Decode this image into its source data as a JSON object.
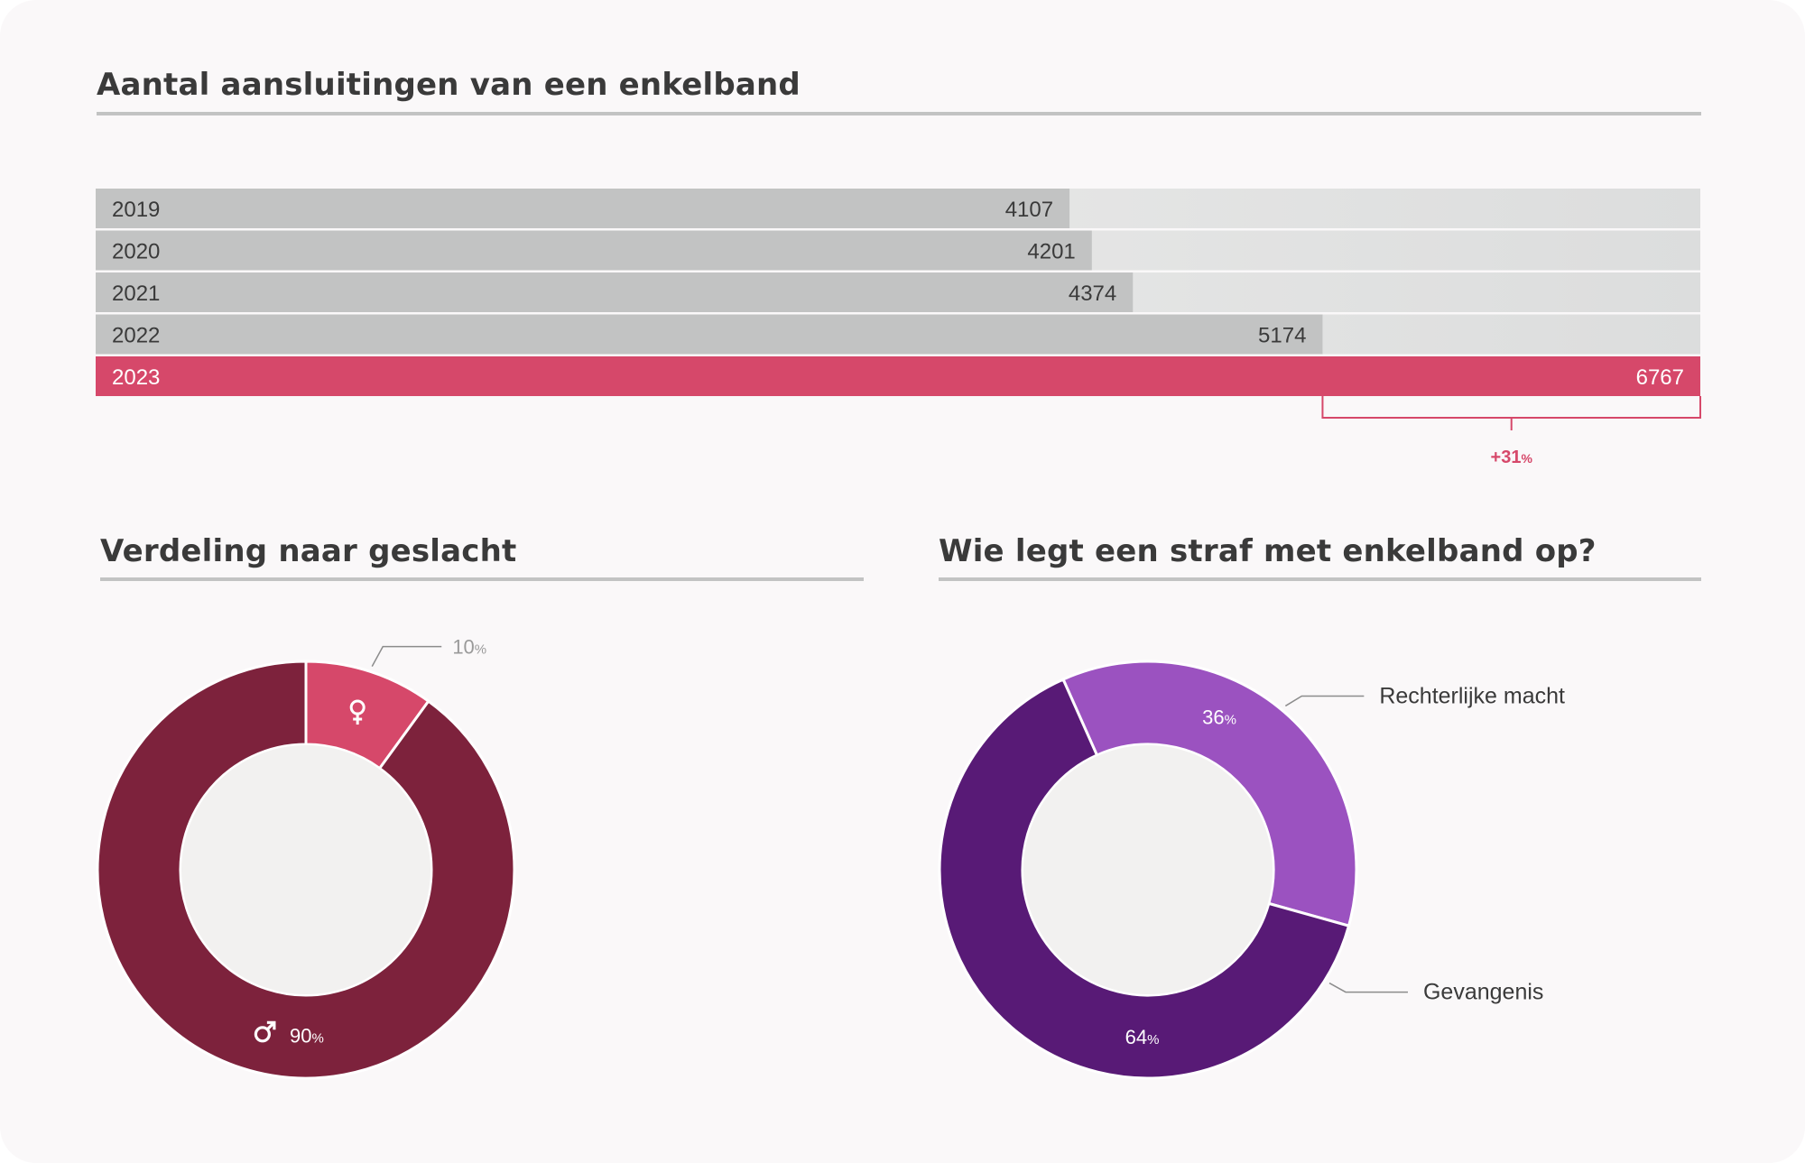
{
  "bar_section": {
    "title": "Aantal aansluitingen van een enkelband",
    "growth_label": "+31",
    "growth_unit": "%"
  },
  "gender_section": {
    "title": "Verdeling naar geslacht"
  },
  "authority_section": {
    "title": "Wie legt een straf met enkelband op?"
  },
  "colors": {
    "bar_grey": "#c2c3c3",
    "bar_track_start": "#f1f1f0",
    "bar_track_end": "#dcdddd",
    "bar_highlight": "#d6486a",
    "female": "#d6486a",
    "male": "#7d223c",
    "judicial": "#9b52c0",
    "prison": "#581a76",
    "donut_hole": "#f2f1f0",
    "leader": "#8c8c8c"
  },
  "chart_data": [
    {
      "type": "bar",
      "orientation": "horizontal",
      "title": "Aantal aansluitingen van een enkelband",
      "categories": [
        "2019",
        "2020",
        "2021",
        "2022",
        "2023"
      ],
      "values": [
        4107,
        4201,
        4374,
        5174,
        6767
      ],
      "highlight": "2023",
      "annotation": {
        "from": "2022",
        "to": "2023",
        "label": "+31%"
      },
      "xlim": [
        0,
        6767
      ]
    },
    {
      "type": "pie",
      "variant": "donut",
      "title": "Verdeling naar geslacht",
      "slices": [
        {
          "icon": "female-icon",
          "value": 10,
          "label": "10%"
        },
        {
          "icon": "male-icon",
          "value": 90,
          "label": "90%"
        }
      ]
    },
    {
      "type": "pie",
      "variant": "donut",
      "title": "Wie legt een straf met enkelband op?",
      "slices": [
        {
          "name": "Rechterlijke macht",
          "value": 36,
          "label": "36%"
        },
        {
          "name": "Gevangenis",
          "value": 64,
          "label": "64%"
        }
      ]
    }
  ]
}
